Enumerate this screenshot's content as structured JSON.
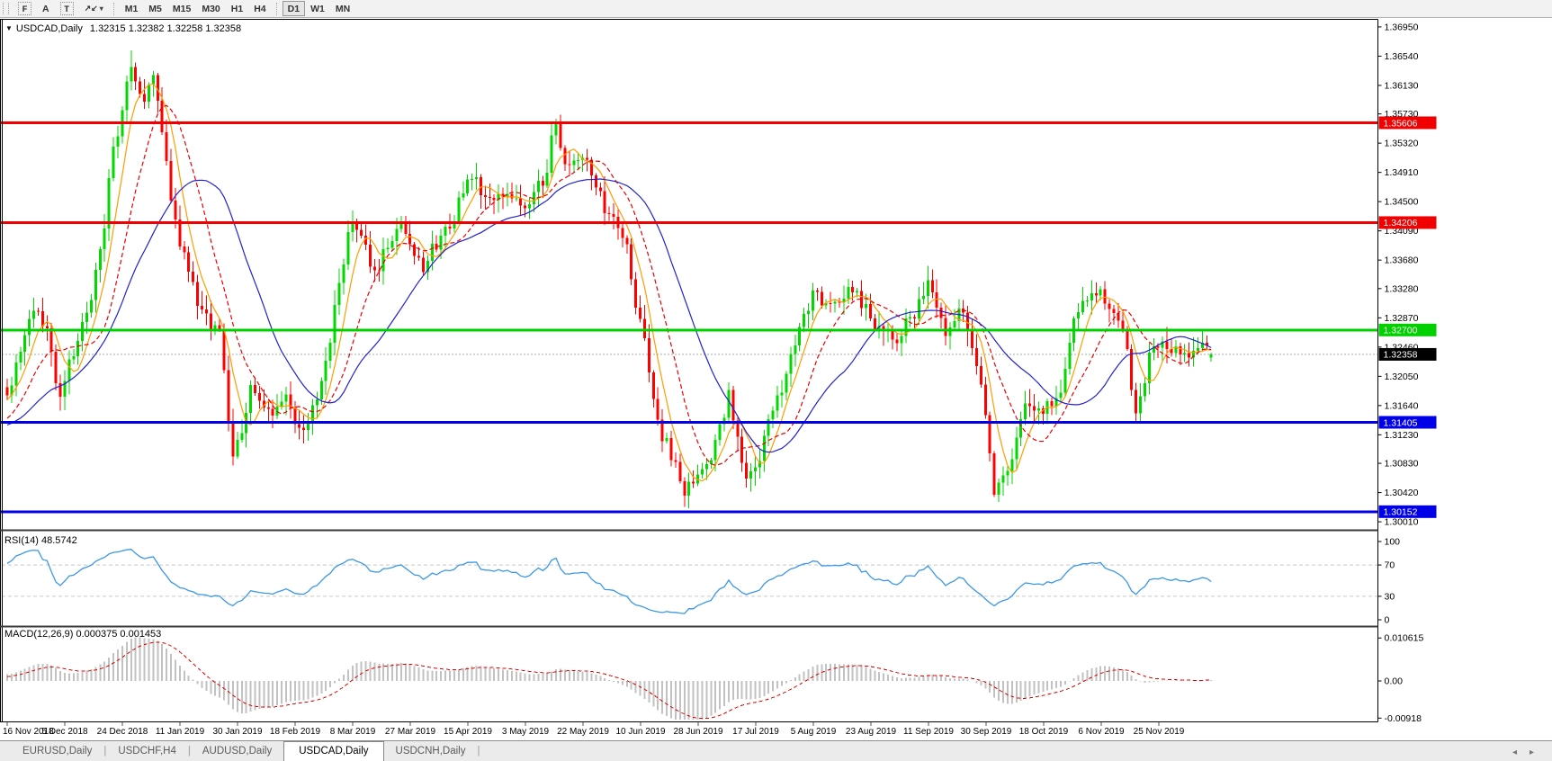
{
  "toolbar": {
    "tools": [
      {
        "name": "chart-frame-tool",
        "label": "F"
      },
      {
        "name": "cursor-tool",
        "label": "A"
      },
      {
        "name": "text-tool",
        "label": "T"
      },
      {
        "name": "objects-tool",
        "label": "↗↙",
        "caret": "▾"
      }
    ],
    "timeframes": [
      "M1",
      "M5",
      "M15",
      "M30",
      "H1",
      "H4",
      "D1",
      "W1",
      "MN"
    ],
    "active_timeframe": "D1",
    "separator_after": "H4"
  },
  "chart": {
    "collapse_glyph": "▼",
    "title_symbol": "USDCAD,Daily",
    "title_ohlc": "1.32315 1.32382 1.32258 1.32358"
  },
  "price_axis": {
    "ticks": [
      "1.36950",
      "1.36540",
      "1.36130",
      "1.35730",
      "1.35320",
      "1.34910",
      "1.34500",
      "1.34090",
      "1.33680",
      "1.33280",
      "1.32870",
      "1.32460",
      "1.32050",
      "1.31640",
      "1.31230",
      "1.30830",
      "1.30420",
      "1.30010"
    ]
  },
  "hlines": [
    {
      "label": "1.35606",
      "value": 1.35606,
      "color": "#F00000",
      "width": 3,
      "type": "resistance"
    },
    {
      "label": "1.34206",
      "value": 1.34206,
      "color": "#F00000",
      "width": 3,
      "type": "resistance"
    },
    {
      "label": "1.32700",
      "value": 1.327,
      "color": "#00D000",
      "width": 3,
      "type": "pivot"
    },
    {
      "label": "1.31405",
      "value": 1.31405,
      "color": "#0000E8",
      "width": 3,
      "type": "support"
    },
    {
      "label": "1.30152",
      "value": 1.30152,
      "color": "#0000E8",
      "width": 3,
      "type": "support"
    }
  ],
  "current_price": {
    "label": "1.32358",
    "value": 1.32358,
    "badge_bg": "#000000"
  },
  "rsi_panel": {
    "label": "RSI(14) 48.5742",
    "axis_labels": [
      {
        "text": "100",
        "value": 100
      },
      {
        "text": "70",
        "value": 70
      },
      {
        "text": "30",
        "value": 30
      },
      {
        "text": "0",
        "value": 0
      }
    ],
    "levels": [
      70,
      30
    ],
    "line_color": "#3B97E8"
  },
  "macd_panel": {
    "label": "MACD(12,26,9) 0.000375 0.001453",
    "axis_labels": [
      {
        "text": "0.010615",
        "value": 0.010615
      },
      {
        "text": "0.00",
        "value": 0
      },
      {
        "text": "-0.00918",
        "value": -0.00918
      }
    ],
    "bar_color": "#C2C2C2",
    "signal_color": "#E80000"
  },
  "date_axis": {
    "labels": [
      "16 Nov 2018",
      "5 Dec 2018",
      "24 Dec 2018",
      "11 Jan 2019",
      "30 Jan 2019",
      "18 Feb 2019",
      "8 Mar 2019",
      "27 Mar 2019",
      "15 Apr 2019",
      "3 May 2019",
      "22 May 2019",
      "10 Jun 2019",
      "28 Jun 2019",
      "17 Jul 2019",
      "5 Aug 2019",
      "23 Aug 2019",
      "11 Sep 2019",
      "30 Sep 2019",
      "18 Oct 2019",
      "6 Nov 2019",
      "25 Nov 2019"
    ]
  },
  "tabs": {
    "items": [
      "EURUSD,Daily",
      "USDCHF,H4",
      "AUDUSD,Daily",
      "USDCAD,Daily",
      "USDCNH,Daily"
    ],
    "active": "USDCAD,Daily",
    "scroll_left": "◂",
    "scroll_right": "▸"
  },
  "chart_data": {
    "type": "candlestick",
    "symbol": "USDCAD",
    "timeframe": "Daily",
    "current_ohlc": {
      "open": 1.32315,
      "high": 1.32382,
      "low": 1.32258,
      "close": 1.32358
    },
    "visible_price_range": {
      "top": 1.3705,
      "bottom": 1.2991
    },
    "bar_count": 273,
    "up_color": "#00D800",
    "down_color": "#FF0000",
    "ma_lines": [
      {
        "period": 6,
        "color": "#FF9C00",
        "style": "solid"
      },
      {
        "period": 13,
        "color": "#E80000",
        "style": "dashed"
      },
      {
        "period": 26,
        "color": "#2222CC",
        "style": "solid"
      }
    ],
    "pre_anchors": [
      [
        -40,
        1.309
      ],
      [
        -22,
        1.3135
      ],
      [
        -10,
        1.3115
      ]
    ],
    "anchors": [
      [
        0,
        1.3185
      ],
      [
        3,
        1.324
      ],
      [
        6,
        1.33
      ],
      [
        9,
        1.327
      ],
      [
        12,
        1.318
      ],
      [
        15,
        1.324
      ],
      [
        18,
        1.33
      ],
      [
        21,
        1.338
      ],
      [
        24,
        1.352
      ],
      [
        26,
        1.3575
      ],
      [
        28,
        1.3645
      ],
      [
        30,
        1.36
      ],
      [
        31,
        1.3585
      ],
      [
        33,
        1.363
      ],
      [
        35,
        1.355
      ],
      [
        37,
        1.345
      ],
      [
        40,
        1.337
      ],
      [
        44,
        1.329
      ],
      [
        48,
        1.3265
      ],
      [
        51,
        1.309
      ],
      [
        53,
        1.313
      ],
      [
        55,
        1.319
      ],
      [
        58,
        1.3155
      ],
      [
        60,
        1.315
      ],
      [
        63,
        1.3175
      ],
      [
        66,
        1.3125
      ],
      [
        69,
        1.316
      ],
      [
        72,
        1.322
      ],
      [
        75,
        1.333
      ],
      [
        78,
        1.343
      ],
      [
        80,
        1.3395
      ],
      [
        83,
        1.335
      ],
      [
        86,
        1.339
      ],
      [
        89,
        1.342
      ],
      [
        92,
        1.338
      ],
      [
        94,
        1.336
      ],
      [
        97,
        1.339
      ],
      [
        100,
        1.342
      ],
      [
        103,
        1.346
      ],
      [
        105,
        1.3485
      ],
      [
        108,
        1.3455
      ],
      [
        110,
        1.345
      ],
      [
        113,
        1.3465
      ],
      [
        117,
        1.344
      ],
      [
        121,
        1.348
      ],
      [
        124,
        1.3555
      ],
      [
        126,
        1.351
      ],
      [
        127,
        1.3495
      ],
      [
        130,
        1.3515
      ],
      [
        133,
        1.347
      ],
      [
        136,
        1.3425
      ],
      [
        139,
        1.3405
      ],
      [
        143,
        1.328
      ],
      [
        146,
        1.318
      ],
      [
        148,
        1.312
      ],
      [
        151,
        1.308
      ],
      [
        153,
        1.3045
      ],
      [
        156,
        1.306
      ],
      [
        158,
        1.3075
      ],
      [
        161,
        1.313
      ],
      [
        163,
        1.318
      ],
      [
        165,
        1.312
      ],
      [
        167,
        1.3055
      ],
      [
        170,
        1.309
      ],
      [
        172,
        1.314
      ],
      [
        175,
        1.319
      ],
      [
        177,
        1.324
      ],
      [
        180,
        1.329
      ],
      [
        182,
        1.332
      ],
      [
        184,
        1.331
      ],
      [
        186,
        1.33
      ],
      [
        189,
        1.332
      ],
      [
        191,
        1.333
      ],
      [
        194,
        1.33
      ],
      [
        196,
        1.328
      ],
      [
        199,
        1.327
      ],
      [
        201,
        1.326
      ],
      [
        203,
        1.328
      ],
      [
        205,
        1.3295
      ],
      [
        208,
        1.3335
      ],
      [
        210,
        1.33
      ],
      [
        212,
        1.327
      ],
      [
        214,
        1.329
      ],
      [
        216,
        1.33
      ],
      [
        218,
        1.325
      ],
      [
        220,
        1.32
      ],
      [
        222,
        1.31
      ],
      [
        223,
        1.3045
      ],
      [
        225,
        1.306
      ],
      [
        227,
        1.309
      ],
      [
        229,
        1.314
      ],
      [
        230,
        1.3165
      ],
      [
        232,
        1.316
      ],
      [
        234,
        1.3155
      ],
      [
        236,
        1.317
      ],
      [
        238,
        1.319
      ],
      [
        241,
        1.328
      ],
      [
        243,
        1.331
      ],
      [
        245,
        1.333
      ],
      [
        247,
        1.332
      ],
      [
        250,
        1.329
      ],
      [
        252,
        1.327
      ],
      [
        255,
        1.316
      ],
      [
        257,
        1.32
      ],
      [
        258,
        1.3235
      ],
      [
        260,
        1.3245
      ],
      [
        262,
        1.325
      ],
      [
        264,
        1.324
      ],
      [
        266,
        1.323
      ],
      [
        268,
        1.3245
      ],
      [
        270,
        1.325
      ],
      [
        272,
        1.32358
      ]
    ],
    "key_extremes": [
      {
        "i": 28,
        "high": 1.3662
      },
      {
        "i": 124,
        "high": 1.3566
      },
      {
        "i": 153,
        "low": 1.3022
      },
      {
        "i": 223,
        "low": 1.3036
      },
      {
        "i": 272,
        "open": 1.32315,
        "high": 1.32382,
        "low": 1.32258,
        "close": 1.32358
      }
    ],
    "rsi": {
      "period": 14,
      "current": 48.5742
    },
    "macd": {
      "fast": 12,
      "slow": 26,
      "signal": 9,
      "current_macd": 0.000375,
      "current_signal": 0.001453
    }
  }
}
